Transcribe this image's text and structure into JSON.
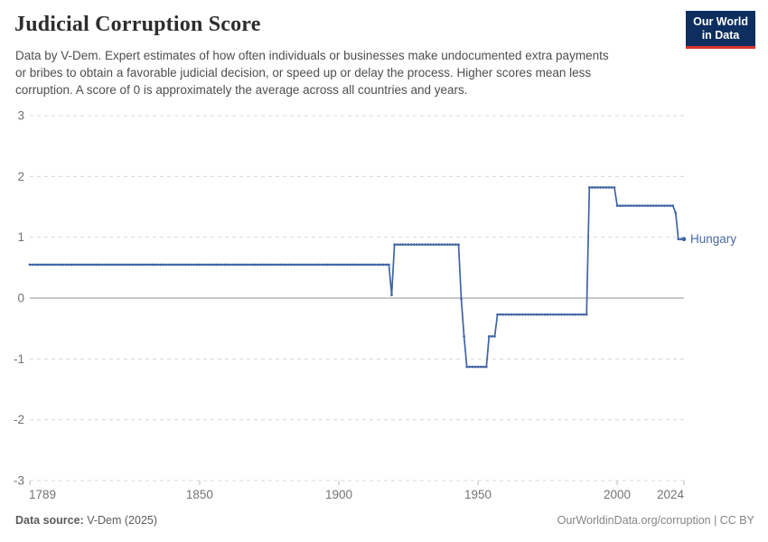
{
  "header": {
    "title": "Judicial Corruption Score",
    "subtitle_lines": [
      "Data by V-Dem. Expert estimates of how often individuals or businesses make undocumented extra payments",
      "or bribes to obtain a favorable judicial decision, or speed up or delay the process. Higher scores mean less",
      "corruption. A score of 0 is approximately the average across all countries and years."
    ],
    "logo": {
      "line1": "Our World",
      "line2": "in Data"
    }
  },
  "footer": {
    "source_label": "Data source:",
    "source_value": " V-Dem (2025)",
    "right_text": "OurWorldinData.org/corruption | CC BY"
  },
  "colors": {
    "line": "#3e64a4",
    "entity_label": "#4a69a5",
    "gridline": "#d8d8d8",
    "zero_line": "#a8a8a8",
    "tick_text": "#737373",
    "tick_mark": "#bdbdbd",
    "logo_bg": "#0d2e5e",
    "logo_underline": "#dc352c"
  },
  "chart_data": {
    "type": "line",
    "title": "Judicial Corruption Score",
    "xlabel": "",
    "ylabel": "",
    "xlim": [
      1789,
      2024
    ],
    "ylim": [
      -3,
      3
    ],
    "x_ticks": [
      1789,
      1850,
      1900,
      1950,
      2000,
      2024
    ],
    "y_ticks": [
      3,
      2,
      1,
      0,
      -1,
      -2,
      -3
    ],
    "grid": "horizontal-dashed",
    "legend_position": "end-of-line-label",
    "series": [
      {
        "name": "Hungary",
        "color": "#3e64a4",
        "segments": [
          {
            "from": 1789,
            "to": 1918,
            "value": 0.55
          },
          {
            "from": 1919,
            "to": 1919,
            "value": 0.05
          },
          {
            "from": 1920,
            "to": 1943,
            "value": 0.88
          },
          {
            "from": 1944,
            "to": 1944,
            "value": -0.01
          },
          {
            "from": 1945,
            "to": 1945,
            "value": -0.63
          },
          {
            "from": 1946,
            "to": 1953,
            "value": -1.13
          },
          {
            "from": 1954,
            "to": 1956,
            "value": -0.63
          },
          {
            "from": 1957,
            "to": 1989,
            "value": -0.27
          },
          {
            "from": 1990,
            "to": 1999,
            "value": 1.82
          },
          {
            "from": 2000,
            "to": 2020,
            "value": 1.52
          },
          {
            "from": 2021,
            "to": 2021,
            "value": 1.4
          },
          {
            "from": 2022,
            "to": 2024,
            "value": 0.97
          }
        ]
      }
    ]
  }
}
